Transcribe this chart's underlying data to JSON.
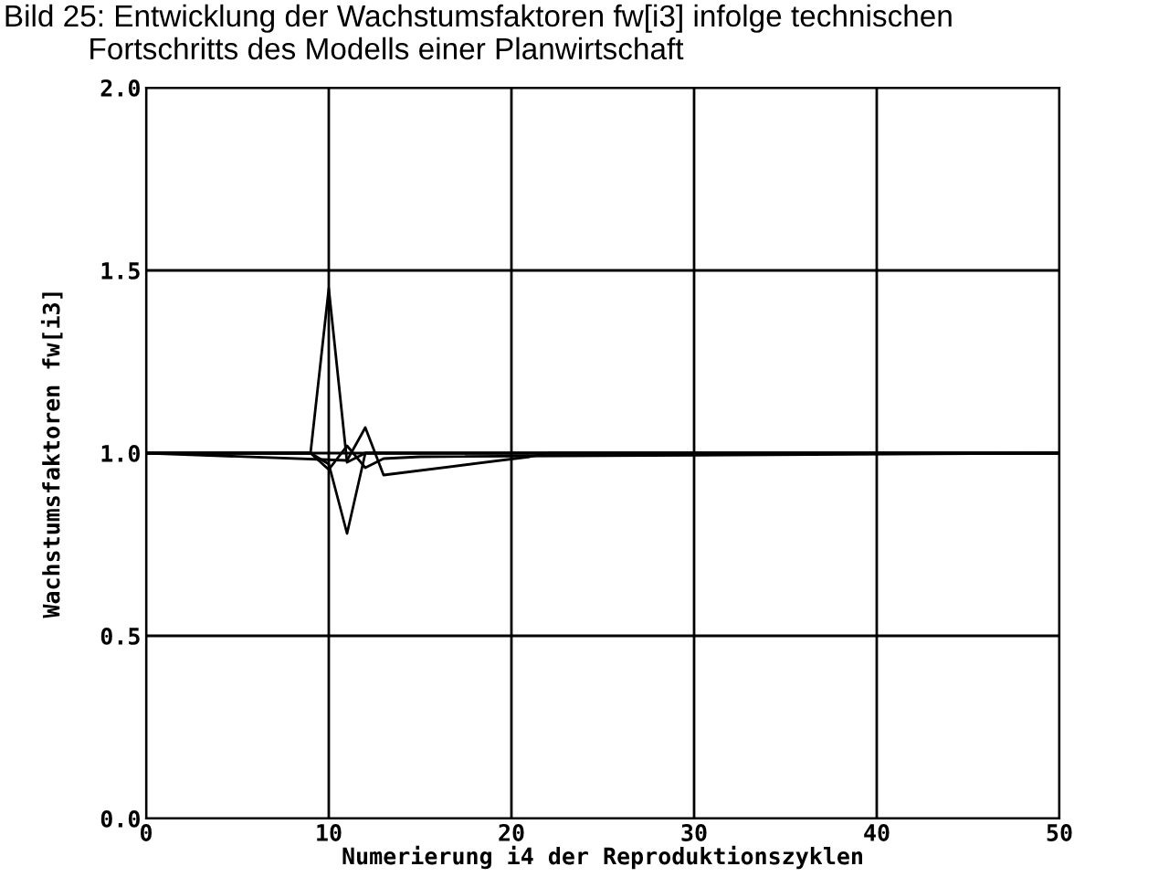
{
  "chart_data": {
    "type": "line",
    "title": "Bild 25: Entwicklung der Wachstumsfaktoren fw[i3] infolge technischen\n          Fortschritts des Modells einer Planwirtschaft",
    "xlabel": "Numerierung i4 der Reproduktionszyklen",
    "ylabel": "Wachstumsfaktoren fw[i3]",
    "series": [
      {
        "color": "#000000",
        "x": [
          0,
          9,
          10,
          11,
          12,
          13,
          50
        ],
        "values": [
          1.0,
          1.0,
          1.45,
          0.975,
          1.0,
          1.0,
          1.0
        ]
      },
      {
        "color": "#000000",
        "x": [
          0,
          9,
          10,
          11,
          12,
          13,
          50
        ],
        "values": [
          1.0,
          1.0,
          0.97,
          0.78,
          1.0,
          1.0,
          1.0
        ]
      },
      {
        "color": "#000000",
        "x": [
          0,
          11,
          12,
          13,
          21,
          22,
          50
        ],
        "values": [
          1.0,
          0.98,
          1.07,
          0.94,
          0.99,
          1.0,
          1.0
        ]
      },
      {
        "color": "#000000",
        "x": [
          0,
          9,
          10,
          11,
          12,
          13,
          15,
          50
        ],
        "values": [
          1.0,
          1.0,
          0.955,
          1.02,
          0.96,
          0.985,
          0.99,
          1.0
        ]
      }
    ],
    "xlim": [
      0,
      50
    ],
    "xticks": [
      0,
      10,
      20,
      30,
      40,
      50
    ],
    "ylim": [
      0,
      2
    ],
    "yticks": [
      {
        "value": 0,
        "label": "0.0"
      },
      {
        "value": 0.5,
        "label": "0.5"
      },
      {
        "value": 1,
        "label": "1.0"
      },
      {
        "value": 1.5,
        "label": "1.5"
      },
      {
        "value": 2,
        "label": "2.0"
      }
    ],
    "grid": true,
    "legend": false,
    "marker": "none",
    "line_style": "solid"
  }
}
